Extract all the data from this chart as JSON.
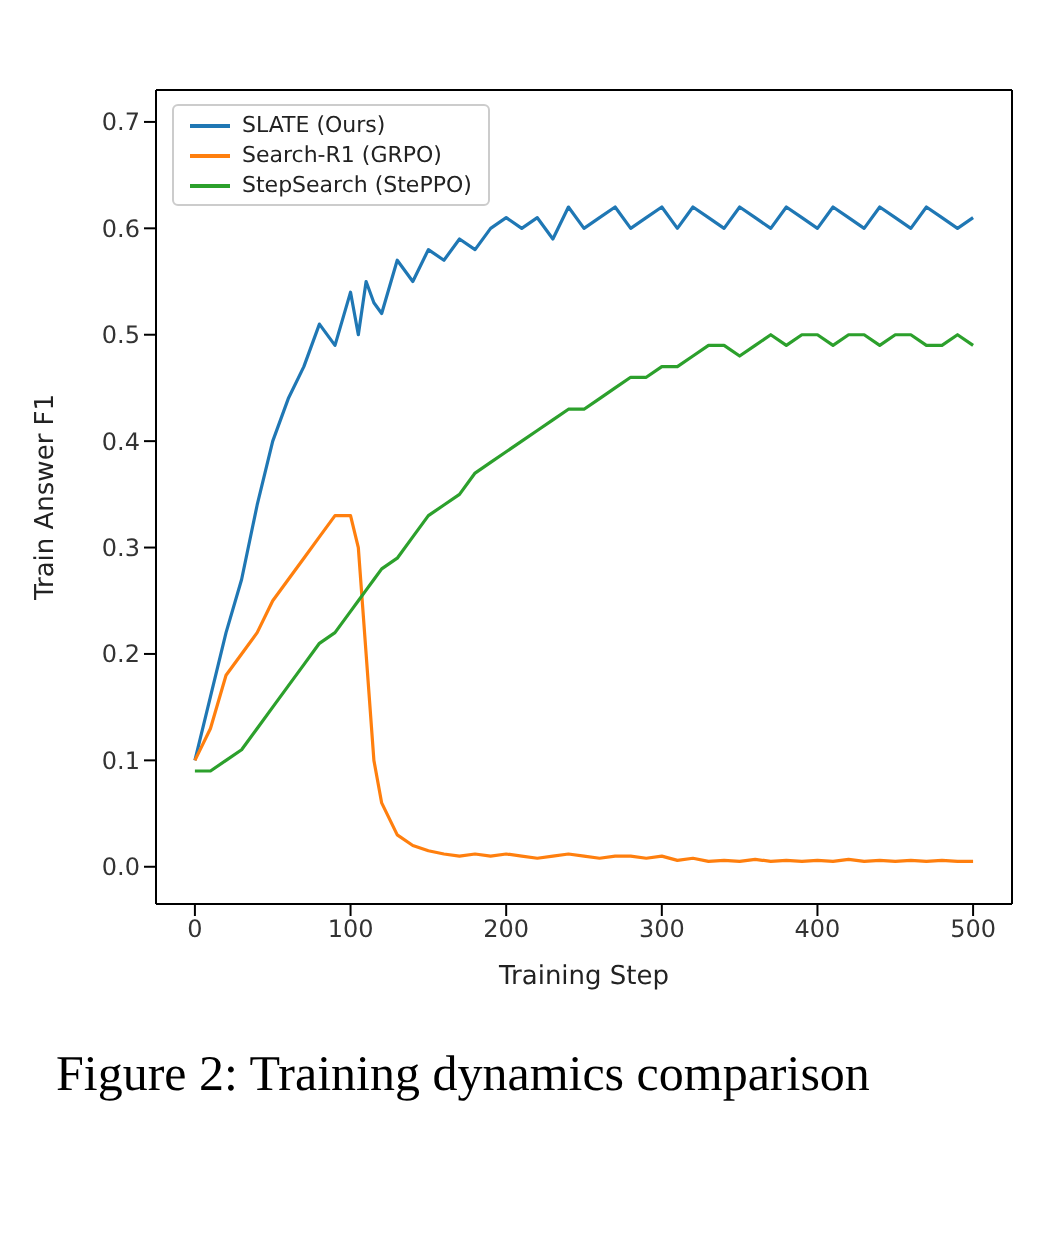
{
  "chart_data": {
    "type": "line",
    "xlabel": "Training Step",
    "ylabel": "Train Answer F1",
    "annotations": [
      "Figure 2: Training dynamics comparison"
    ],
    "x": [
      0,
      10,
      20,
      30,
      40,
      50,
      60,
      70,
      80,
      90,
      100,
      105,
      110,
      115,
      120,
      130,
      140,
      150,
      160,
      170,
      180,
      190,
      200,
      210,
      220,
      230,
      240,
      250,
      260,
      270,
      280,
      290,
      300,
      310,
      320,
      330,
      340,
      350,
      360,
      370,
      380,
      390,
      400,
      410,
      420,
      430,
      440,
      450,
      460,
      470,
      480,
      490,
      500
    ],
    "series": [
      {
        "name": "SLATE (Ours)",
        "color": "#1f77b4",
        "values": [
          0.1,
          0.16,
          0.22,
          0.27,
          0.34,
          0.4,
          0.44,
          0.47,
          0.51,
          0.49,
          0.54,
          0.5,
          0.55,
          0.53,
          0.52,
          0.57,
          0.55,
          0.58,
          0.57,
          0.59,
          0.58,
          0.6,
          0.61,
          0.6,
          0.61,
          0.59,
          0.62,
          0.6,
          0.61,
          0.62,
          0.6,
          0.61,
          0.62,
          0.6,
          0.62,
          0.61,
          0.6,
          0.62,
          0.61,
          0.6,
          0.62,
          0.61,
          0.6,
          0.62,
          0.61,
          0.6,
          0.62,
          0.61,
          0.6,
          0.62,
          0.61,
          0.6,
          0.61
        ]
      },
      {
        "name": "Search-R1 (GRPO)",
        "color": "#ff7f0e",
        "values": [
          0.1,
          0.13,
          0.18,
          0.2,
          0.22,
          0.25,
          0.27,
          0.29,
          0.31,
          0.33,
          0.33,
          0.3,
          0.2,
          0.1,
          0.06,
          0.03,
          0.02,
          0.015,
          0.012,
          0.01,
          0.012,
          0.01,
          0.012,
          0.01,
          0.008,
          0.01,
          0.012,
          0.01,
          0.008,
          0.01,
          0.01,
          0.008,
          0.01,
          0.006,
          0.008,
          0.005,
          0.006,
          0.005,
          0.007,
          0.005,
          0.006,
          0.005,
          0.006,
          0.005,
          0.007,
          0.005,
          0.006,
          0.005,
          0.006,
          0.005,
          0.006,
          0.005,
          0.005
        ]
      },
      {
        "name": "StepSearch (StePPO)",
        "color": "#2ca02c",
        "values": [
          0.09,
          0.09,
          0.1,
          0.11,
          0.13,
          0.15,
          0.17,
          0.19,
          0.21,
          0.22,
          0.24,
          0.25,
          0.26,
          0.27,
          0.28,
          0.29,
          0.31,
          0.33,
          0.34,
          0.35,
          0.37,
          0.38,
          0.39,
          0.4,
          0.41,
          0.42,
          0.43,
          0.43,
          0.44,
          0.45,
          0.46,
          0.46,
          0.47,
          0.47,
          0.48,
          0.49,
          0.49,
          0.48,
          0.49,
          0.5,
          0.49,
          0.5,
          0.5,
          0.49,
          0.5,
          0.5,
          0.49,
          0.5,
          0.5,
          0.49,
          0.49,
          0.5,
          0.49
        ]
      }
    ],
    "xlim": [
      -25,
      525
    ],
    "ylim": [
      -0.035,
      0.73
    ],
    "xticks": [
      0,
      100,
      200,
      300,
      400,
      500
    ],
    "yticks": [
      {
        "value": 0,
        "label": "0.0"
      },
      {
        "value": 0.1,
        "label": "0.1"
      },
      {
        "value": 0.2,
        "label": "0.2"
      },
      {
        "value": 0.3,
        "label": "0.3"
      },
      {
        "value": 0.4,
        "label": "0.4"
      },
      {
        "value": 0.5,
        "label": "0.5"
      },
      {
        "value": 0.6,
        "label": "0.6"
      },
      {
        "value": 0.7,
        "label": "0.7"
      }
    ],
    "grid": false,
    "legend": "top left",
    "marker": "none",
    "line_style": "solid"
  }
}
